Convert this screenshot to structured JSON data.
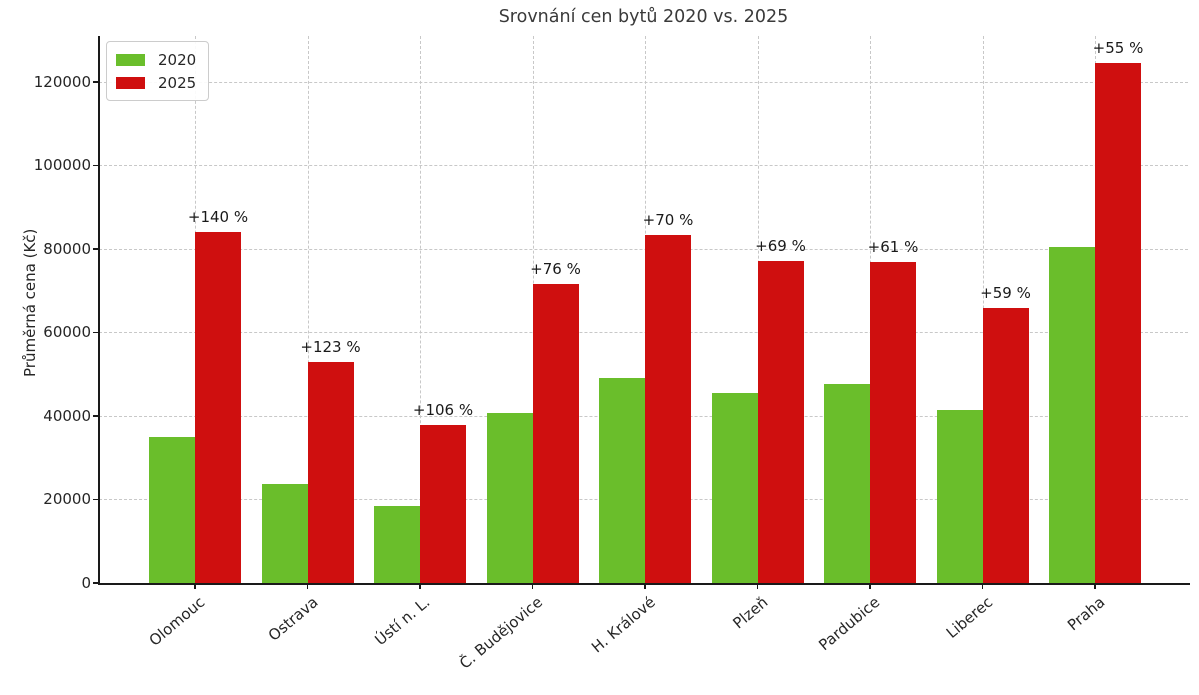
{
  "title": "Srovnání cen bytů 2020 vs. 2025",
  "chart_data": {
    "type": "bar",
    "title": "Srovnání cen bytů 2020 vs. 2025",
    "xlabel": "",
    "ylabel": "Průměrná cena (Kč)",
    "categories": [
      "Olomouc",
      "Ostrava",
      "Ústí n. L.",
      "Č. Budějovice",
      "H. Králové",
      "Plzeň",
      "Pardubice",
      "Liberec",
      "Praha"
    ],
    "series": [
      {
        "name": "2020",
        "color": "#6abe2b",
        "values": [
          35000,
          23700,
          18400,
          40700,
          49000,
          45600,
          47700,
          41400,
          80400
        ]
      },
      {
        "name": "2025",
        "color": "#cf0f0f",
        "values": [
          84000,
          52900,
          37900,
          71600,
          83300,
          77100,
          76800,
          65800,
          124600
        ]
      }
    ],
    "annotations": [
      "+140 %",
      "+123 %",
      "+106 %",
      "+76 %",
      "+70 %",
      "+69 %",
      "+61 %",
      "+59 %",
      "+55 %"
    ],
    "yticks": [
      0,
      20000,
      40000,
      60000,
      80000,
      100000,
      120000
    ],
    "ylim": [
      0,
      131000
    ],
    "grid": "dashed, both axes",
    "legend_position": "upper left",
    "colors": {
      "grid": "#c8c8c8",
      "spine": "#1a1a1a",
      "title_text": "#3a3a3a",
      "tick_text": "#262626",
      "annotation_text": "#1a1a1a"
    }
  }
}
